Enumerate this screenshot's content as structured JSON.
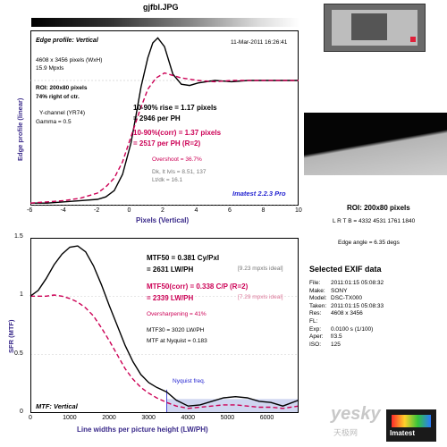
{
  "window_title": "gjfbl.JPG",
  "edge_plot": {
    "header_title": "Edge profile: Vertical",
    "timestamp": "11-Mar-2011 16:26:41",
    "info_lines": [
      "4608 x 3456 pixels (WxH)",
      "15.9 Mpxls"
    ],
    "roi_lines": [
      "ROI: 200x80 pixels",
      "74% right of ctr."
    ],
    "channel_lines": [
      "Y-channel  (YR74)",
      "Gamma = 0.5"
    ],
    "rise_line": "10-90% rise = 1.17 pixels",
    "rise_per_ph": "= 2946 per PH",
    "rise_corr_line": "10-90%(corr) = 1.37 pixels",
    "rise_corr_per_ph": "= 2517 per PH  (R=2)",
    "overshoot": "Overshoot = 36.7%",
    "dk_lines": [
      "Dk, lt lvls = 8.51, 137",
      "Lt/dk = 16.1"
    ],
    "brand": "Imatest 2.2.3 Pro",
    "ylabel": "Edge profile (linear)",
    "xlabel": "Pixels (Vertical)",
    "xticks": [
      "-6",
      "-4",
      "-2",
      "0",
      "2",
      "4",
      "6",
      "8",
      "10"
    ]
  },
  "mtf_plot": {
    "mtf50_line": "MTF50 = 0.381 Cy/Pxl",
    "mtf50_lwph": "= 2631 LW/PH",
    "mtf50_ideal": "[9.23 mpxls ideal]",
    "mtf50corr_line": "MTF50(corr) = 0.338 C/P  (R=2)",
    "mtf50corr_lwph": "= 2339 LW/PH",
    "mtf50corr_ideal": "[7.29 mpxls ideal]",
    "oversharpening": "Oversharpening = 41%",
    "mtf30": "MTF30 = 3020 LW/PH",
    "mtf_nyquist": "MTF at Nyquist = 0.183",
    "nyquist_label": "Nyquist freq.",
    "panel_label": "MTF: Vertical",
    "ylabel": "SFR (MTF)",
    "xlabel": "Line widths per picture height (LW/PH)",
    "yticks": [
      "0",
      "0.5",
      "1",
      "1.5"
    ],
    "xticks": [
      "0",
      "1000",
      "2000",
      "3000",
      "4000",
      "5000",
      "6000"
    ]
  },
  "roi_panel": {
    "title": "ROI: 200x80 pixels",
    "lrtb": "L R T B = 4332 4531   1761 1840",
    "edge_angle": "Edge angle = 6.35 degs"
  },
  "exif": {
    "title": "Selected EXIF data",
    "rows": [
      {
        "k": "File:",
        "v": "2011:01:15 05:08:32"
      },
      {
        "k": "Make:",
        "v": "SONY"
      },
      {
        "k": "Model:",
        "v": "DSC-TX000"
      },
      {
        "k": "Taken:",
        "v": "2011:01:15 05:08:33"
      },
      {
        "k": "Res:",
        "v": "4608 x 3456"
      },
      {
        "k": "FL:",
        "v": ""
      },
      {
        "k": "Exp:",
        "v": "0.0100 s  (1/100)"
      },
      {
        "k": "Aper:",
        "v": "f/3.5"
      },
      {
        "k": "ISO:",
        "v": "125"
      }
    ]
  },
  "watermark": {
    "site": "yesky",
    "cn": "天极网",
    "logo": "Imatest"
  },
  "colors": {
    "magenta": "#cc0055",
    "blue": "#1f1fd0",
    "nyquist_fill": "#d0d6f0"
  },
  "chart_data": [
    {
      "type": "line",
      "xlabel": "Pixels (Vertical)",
      "ylabel": "Edge profile (linear)",
      "xlim": [
        -6,
        10
      ],
      "series": [
        {
          "x": [
            -6,
            -5,
            -4,
            -3,
            -2,
            -1.5,
            -1,
            -0.5,
            0,
            0.3,
            0.6,
            1,
            1.3,
            1.6,
            2,
            2.5,
            3,
            3.5,
            4,
            5,
            6,
            7,
            8,
            9,
            10
          ],
          "y": [
            0.02,
            0.02,
            0.03,
            0.04,
            0.05,
            0.07,
            0.12,
            0.25,
            0.5,
            0.72,
            0.95,
            1.18,
            1.3,
            1.34,
            1.27,
            1.05,
            0.97,
            0.96,
            0.98,
            1.0,
            0.99,
            1.0,
            1.0,
            1.0,
            1.0
          ]
        },
        {
          "x": [
            -6,
            -5,
            -4,
            -3,
            -2,
            -1.5,
            -1,
            -0.5,
            0,
            0.5,
            1,
            1.5,
            2,
            2.5,
            3,
            4,
            5,
            6,
            7,
            8,
            9,
            10
          ],
          "y": [
            0.02,
            0.03,
            0.04,
            0.06,
            0.1,
            0.15,
            0.22,
            0.35,
            0.55,
            0.75,
            0.93,
            1.02,
            1.06,
            1.04,
            1.02,
            1.0,
            0.99,
            1.0,
            1.0,
            1.0,
            1.0,
            1.0
          ]
        }
      ]
    },
    {
      "type": "line",
      "xlabel": "Line widths per picture height (LW/PH)",
      "ylabel": "SFR (MTF)",
      "xlim": [
        0,
        6800
      ],
      "ylim": [
        0,
        1.5
      ],
      "nyquist_x": 3456,
      "series": [
        {
          "x": [
            0,
            200,
            400,
            600,
            800,
            1000,
            1200,
            1400,
            1600,
            1800,
            2000,
            2200,
            2400,
            2600,
            2800,
            3000,
            3200,
            3456,
            3700,
            4000,
            4300,
            4600,
            4900,
            5200,
            5500,
            5800,
            6100,
            6400,
            6800
          ],
          "y": [
            1.0,
            1.05,
            1.15,
            1.27,
            1.36,
            1.42,
            1.43,
            1.38,
            1.26,
            1.1,
            0.92,
            0.75,
            0.58,
            0.44,
            0.33,
            0.26,
            0.22,
            0.18,
            0.11,
            0.06,
            0.07,
            0.1,
            0.13,
            0.14,
            0.13,
            0.1,
            0.09,
            0.06,
            0.11
          ]
        },
        {
          "x": [
            0,
            200,
            400,
            600,
            800,
            1000,
            1200,
            1400,
            1600,
            1800,
            2000,
            2200,
            2400,
            2600,
            2800,
            3000,
            3200,
            3456,
            3700,
            4000,
            4300,
            4600,
            4900,
            5200,
            5500,
            5800,
            6100,
            6400,
            6800
          ],
          "y": [
            1.0,
            1.0,
            1.0,
            1.01,
            1.0,
            0.98,
            0.95,
            0.9,
            0.83,
            0.73,
            0.62,
            0.5,
            0.38,
            0.29,
            0.22,
            0.17,
            0.13,
            0.09,
            0.06,
            0.04,
            0.05,
            0.06,
            0.07,
            0.07,
            0.06,
            0.05,
            0.05,
            0.04,
            0.06
          ]
        }
      ]
    }
  ]
}
